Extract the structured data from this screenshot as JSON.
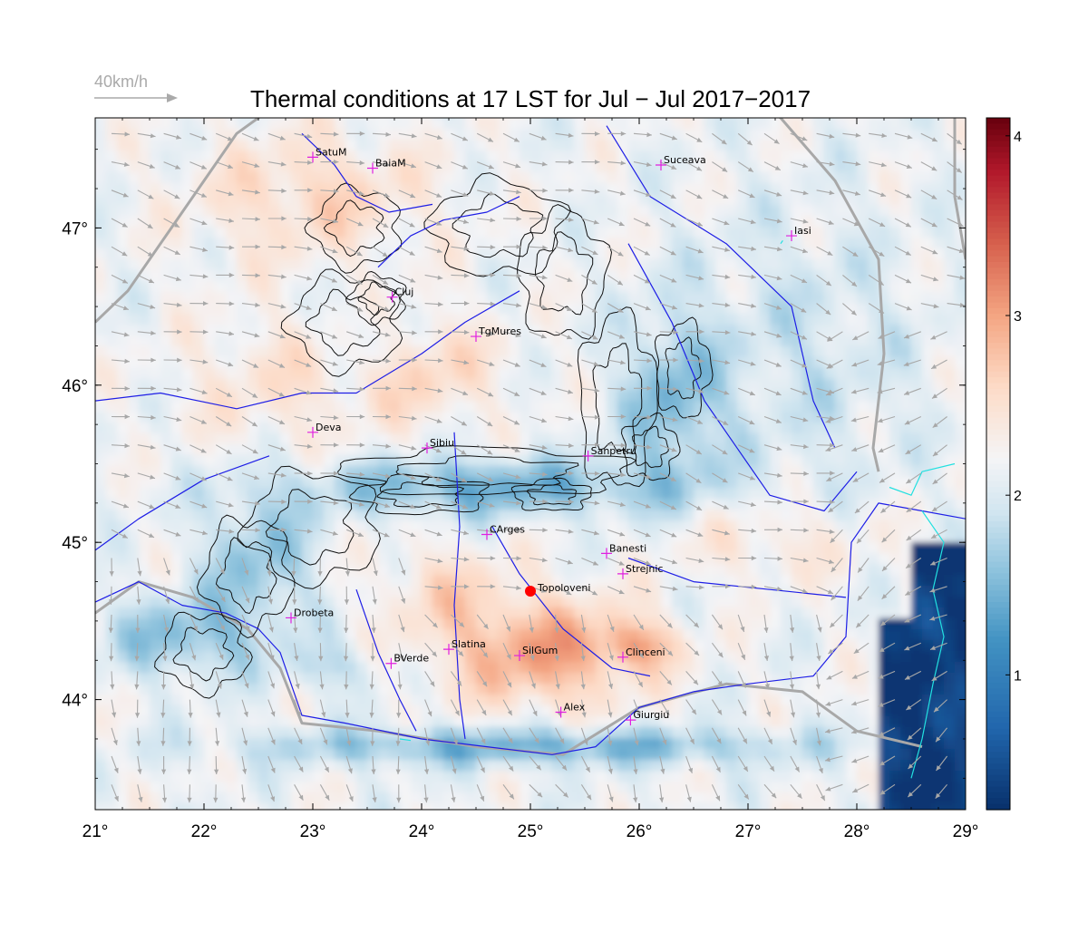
{
  "title": "Thermal conditions at 17 LST for Jul − Jul  2017−2017",
  "wind_key": {
    "label": "40km/h"
  },
  "colors": {
    "low": "#08306b",
    "mid": "#f4f4f6",
    "high": "#67000d",
    "rivers": "#1e1ee6",
    "contours": "#111111",
    "borders": "#a8a8a8",
    "lakes": "#22e0e0",
    "stations": "#e020e0",
    "highlight": "#ff0000",
    "wind_arrows": "#a8a8a8"
  },
  "map": {
    "lon_range": [
      21,
      29
    ],
    "lat_range": [
      43.3,
      47.7
    ],
    "lon_ticks": [
      {
        "v": 21,
        "label": "21°"
      },
      {
        "v": 22,
        "label": "22°"
      },
      {
        "v": 23,
        "label": "23°"
      },
      {
        "v": 24,
        "label": "24°"
      },
      {
        "v": 25,
        "label": "25°"
      },
      {
        "v": 26,
        "label": "26°"
      },
      {
        "v": 27,
        "label": "27°"
      },
      {
        "v": 28,
        "label": "28°"
      },
      {
        "v": 29,
        "label": "29°"
      }
    ],
    "lat_ticks": [
      {
        "v": 44,
        "label": "44°"
      },
      {
        "v": 45,
        "label": "45°"
      },
      {
        "v": 46,
        "label": "46°"
      },
      {
        "v": 47,
        "label": "47°"
      }
    ],
    "stations": [
      {
        "name": "SatuM",
        "lon": 23.0,
        "lat": 47.45
      },
      {
        "name": "BaiaM",
        "lon": 23.55,
        "lat": 47.38
      },
      {
        "name": "Suceava",
        "lon": 26.2,
        "lat": 47.4
      },
      {
        "name": "Iasi",
        "lon": 27.4,
        "lat": 46.95
      },
      {
        "name": "Cluj",
        "lon": 23.73,
        "lat": 46.56
      },
      {
        "name": "TgMures",
        "lon": 24.5,
        "lat": 46.31
      },
      {
        "name": "Deva",
        "lon": 23.0,
        "lat": 45.7
      },
      {
        "name": "Sibiu",
        "lon": 24.05,
        "lat": 45.6
      },
      {
        "name": "Sanpetru",
        "lon": 25.53,
        "lat": 45.55
      },
      {
        "name": "CArges",
        "lon": 24.6,
        "lat": 45.05
      },
      {
        "name": "Banesti",
        "lon": 25.7,
        "lat": 44.93
      },
      {
        "name": "Strejnic",
        "lon": 25.85,
        "lat": 44.8
      },
      {
        "name": "Drobeta",
        "lon": 22.8,
        "lat": 44.52
      },
      {
        "name": "Slatina",
        "lon": 24.25,
        "lat": 44.32
      },
      {
        "name": "SilGum",
        "lon": 24.9,
        "lat": 44.28
      },
      {
        "name": "Clinceni",
        "lon": 25.85,
        "lat": 44.27
      },
      {
        "name": "BVerde",
        "lon": 23.72,
        "lat": 44.23
      },
      {
        "name": "Alex",
        "lon": 25.28,
        "lat": 43.92
      },
      {
        "name": "Giurgiu",
        "lon": 25.92,
        "lat": 43.87
      }
    ],
    "highlight": {
      "name": "Topoloveni",
      "lon": 25.0,
      "lat": 44.69
    }
  },
  "colorbar": {
    "range": [
      0.25,
      4.1
    ],
    "ticks": [
      {
        "v": 1,
        "label": "1"
      },
      {
        "v": 2,
        "label": "2"
      },
      {
        "v": 3,
        "label": "3"
      },
      {
        "v": 4,
        "label": "4"
      }
    ]
  }
}
